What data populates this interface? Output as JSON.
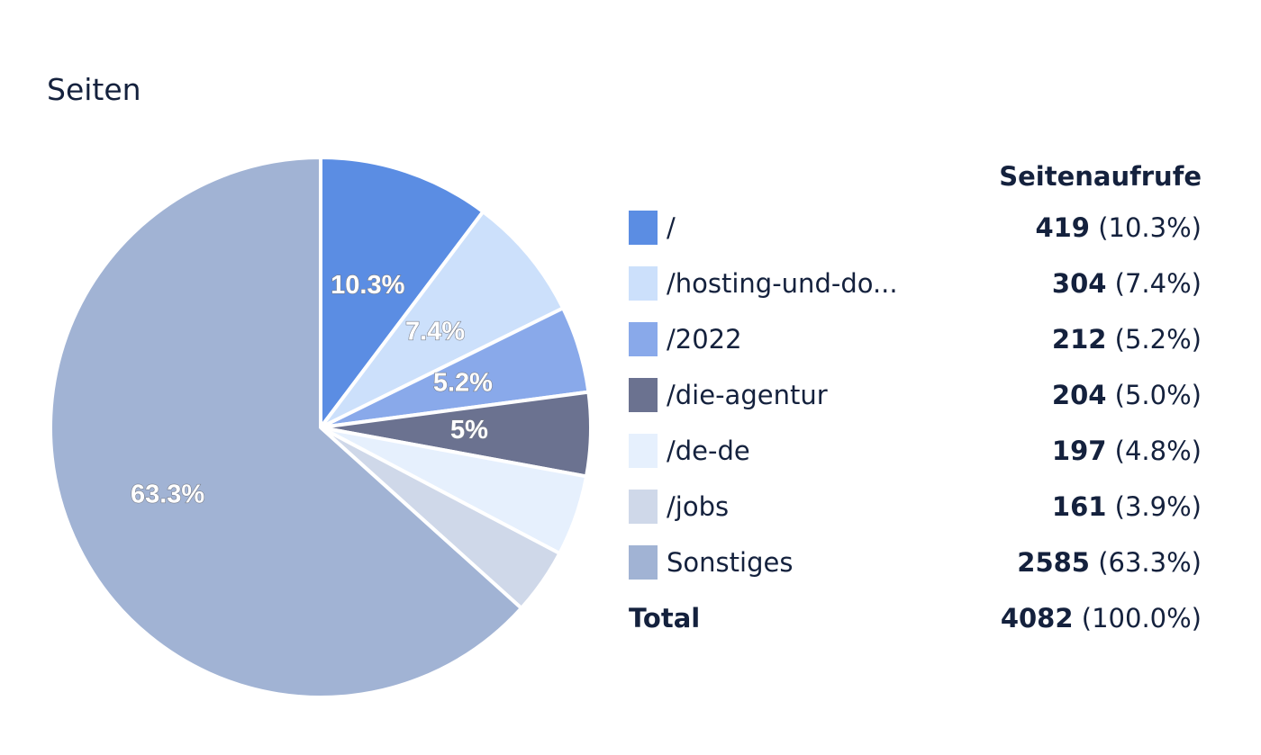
{
  "title": "Seiten",
  "chart_data": {
    "type": "pie",
    "value_header": "Seitenaufrufe",
    "slices": [
      {
        "label": "/",
        "value": 419,
        "percent_text": "10.3%",
        "slice_label": "10.3%",
        "color": "#5b8de3"
      },
      {
        "label": "/hosting-und-do...",
        "value": 304,
        "percent_text": "7.4%",
        "slice_label": "7.4%",
        "color": "#cce0fb"
      },
      {
        "label": "/2022",
        "value": 212,
        "percent_text": "5.2%",
        "slice_label": "5.2%",
        "color": "#89a9ea"
      },
      {
        "label": "/die-agentur",
        "value": 204,
        "percent_text": "5.0%",
        "slice_label": "5%",
        "color": "#6b7290"
      },
      {
        "label": "/de-de",
        "value": 197,
        "percent_text": "4.8%",
        "slice_label": "",
        "color": "#e6f0fd"
      },
      {
        "label": "/jobs",
        "value": 161,
        "percent_text": "3.9%",
        "slice_label": "",
        "color": "#cfd8e9"
      },
      {
        "label": "Sonstiges",
        "value": 2585,
        "percent_text": "63.3%",
        "slice_label": "63.3%",
        "color": "#a1b3d4"
      }
    ],
    "total": {
      "label": "Total",
      "value": 4082,
      "percent_text": "100.0%"
    }
  }
}
